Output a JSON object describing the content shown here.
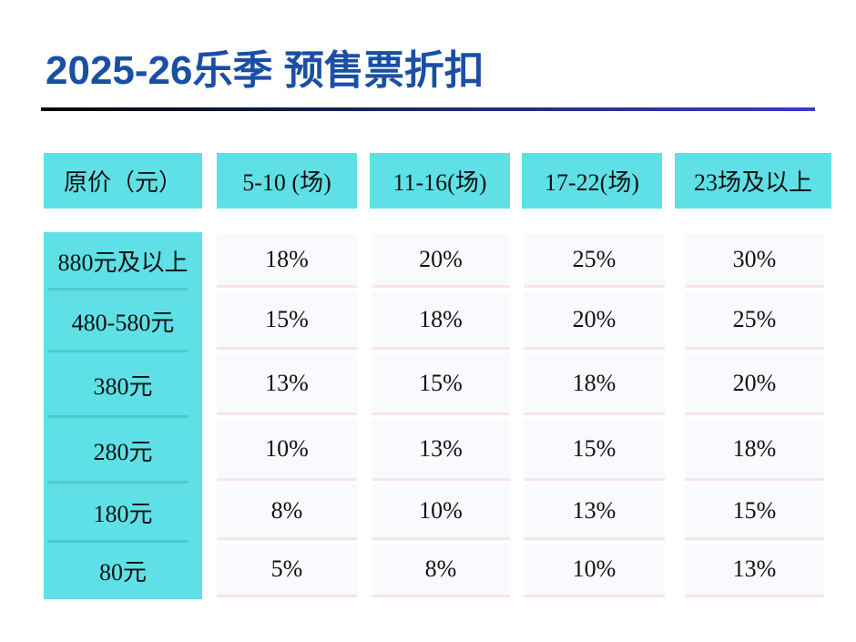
{
  "title": "2025-26乐季 预售票折扣",
  "table": {
    "header": [
      "原价（元）",
      "5-10 (场)",
      "11-16(场)",
      "17-22(场)",
      "23场及以上"
    ],
    "rows": [
      [
        "880元及以上",
        "18%",
        "20%",
        "25%",
        "30%"
      ],
      [
        "480-580元",
        "15%",
        "18%",
        "20%",
        "25%"
      ],
      [
        "380元",
        "13%",
        "15%",
        "18%",
        "20%"
      ],
      [
        "280元",
        "10%",
        "13%",
        "15%",
        "18%"
      ],
      [
        "180元",
        "8%",
        "10%",
        "13%",
        "15%"
      ],
      [
        "80元",
        "5%",
        "8%",
        "10%",
        "13%"
      ]
    ]
  }
}
